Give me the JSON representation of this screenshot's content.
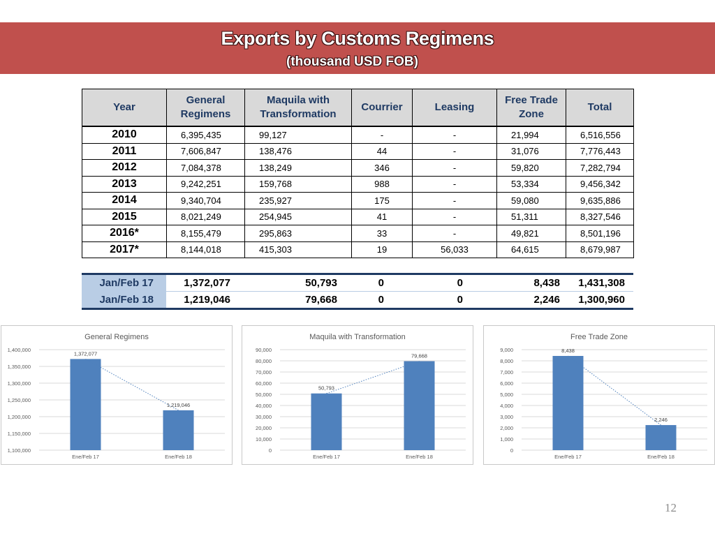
{
  "header": {
    "title": "Exports by Customs Regimens",
    "subtitle": "(thousand USD FOB)"
  },
  "table": {
    "columns": [
      "Year",
      "General Regimens",
      "Maquila with Transformation",
      "Courrier",
      "Leasing",
      "Free Trade Zone",
      "Total"
    ],
    "rows": [
      [
        "2010",
        "6,395,435",
        "99,127",
        "-",
        "-",
        "21,994",
        "6,516,556"
      ],
      [
        "2011",
        "7,606,847",
        "138,476",
        "44",
        "-",
        "31,076",
        "7,776,443"
      ],
      [
        "2012",
        "7,084,378",
        "138,249",
        "346",
        "-",
        "59,820",
        "7,282,794"
      ],
      [
        "2013",
        "9,242,251",
        "159,768",
        "988",
        "-",
        "53,334",
        "9,456,342"
      ],
      [
        "2014",
        "9,340,704",
        "235,927",
        "175",
        "-",
        "59,080",
        "9,635,886"
      ],
      [
        "2015",
        "8,021,249",
        "254,945",
        "41",
        "-",
        "51,311",
        "8,327,546"
      ],
      [
        "2016*",
        "8,155,479",
        "295,863",
        "33",
        "-",
        "49,821",
        "8,501,196"
      ],
      [
        "2017*",
        "8,144,018",
        "415,303",
        "19",
        "56,033",
        "64,615",
        "8,679,987"
      ]
    ]
  },
  "summary": {
    "rows": [
      [
        "Jan/Feb 17",
        "1,372,077",
        "50,793",
        "0",
        "0",
        "8,438",
        "1,431,308"
      ],
      [
        "Jan/Feb 18",
        "1,219,046",
        "79,668",
        "0",
        "0",
        "2,246",
        "1,300,960"
      ]
    ]
  },
  "chart_data": [
    {
      "type": "bar",
      "title": "General Regimens",
      "categories": [
        "Ene/Feb 17",
        "Ene/Feb 18"
      ],
      "values": [
        1372077,
        1219046
      ],
      "value_labels": [
        "1,372,077",
        "1,219,046"
      ],
      "ylim": [
        1100000,
        1400000
      ],
      "yticks": [
        1100000,
        1150000,
        1200000,
        1250000,
        1300000,
        1350000,
        1400000
      ],
      "ytick_labels": [
        "1,100,000",
        "1,150,000",
        "1,200,000",
        "1,250,000",
        "1,300,000",
        "1,350,000",
        "1,400,000"
      ],
      "trendline": "linear dotted",
      "grid": true,
      "bar_color": "#4f81bd"
    },
    {
      "type": "bar",
      "title": "Maquila with Transformation",
      "categories": [
        "Ene/Feb 17",
        "Ene/Feb 18"
      ],
      "values": [
        50793,
        79668
      ],
      "value_labels": [
        "50,793",
        "79,668"
      ],
      "ylim": [
        0,
        90000
      ],
      "yticks": [
        0,
        10000,
        20000,
        30000,
        40000,
        50000,
        60000,
        70000,
        80000,
        90000
      ],
      "ytick_labels": [
        "0",
        "10,000",
        "20,000",
        "30,000",
        "40,000",
        "50,000",
        "60,000",
        "70,000",
        "80,000",
        "90,000"
      ],
      "trendline": "linear dotted",
      "grid": true,
      "bar_color": "#4f81bd"
    },
    {
      "type": "bar",
      "title": "Free Trade Zone",
      "categories": [
        "Ene/Feb 17",
        "Ene/Feb 18"
      ],
      "values": [
        8438,
        2246
      ],
      "value_labels": [
        "8,438",
        "2,246"
      ],
      "ylim": [
        0,
        9000
      ],
      "yticks": [
        0,
        1000,
        2000,
        3000,
        4000,
        5000,
        6000,
        7000,
        8000,
        9000
      ],
      "ytick_labels": [
        "0",
        "1,000",
        "2,000",
        "3,000",
        "4,000",
        "5,000",
        "6,000",
        "7,000",
        "8,000",
        "9,000"
      ],
      "trendline": "linear dotted",
      "grid": true,
      "bar_color": "#4f81bd"
    }
  ],
  "page_number": "12"
}
